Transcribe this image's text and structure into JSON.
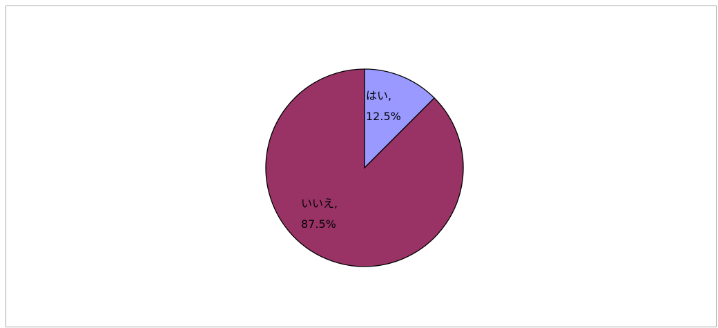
{
  "chart_data": {
    "type": "pie",
    "title": "",
    "start_angle_deg": 0,
    "direction": "clockwise",
    "slices": [
      {
        "label": "はい",
        "value": 12.5,
        "value_text": "12.5%",
        "color": "#9999ff"
      },
      {
        "label": "いいえ",
        "value": 87.5,
        "value_text": "87.5%",
        "color": "#993366"
      }
    ],
    "legend": "none"
  }
}
